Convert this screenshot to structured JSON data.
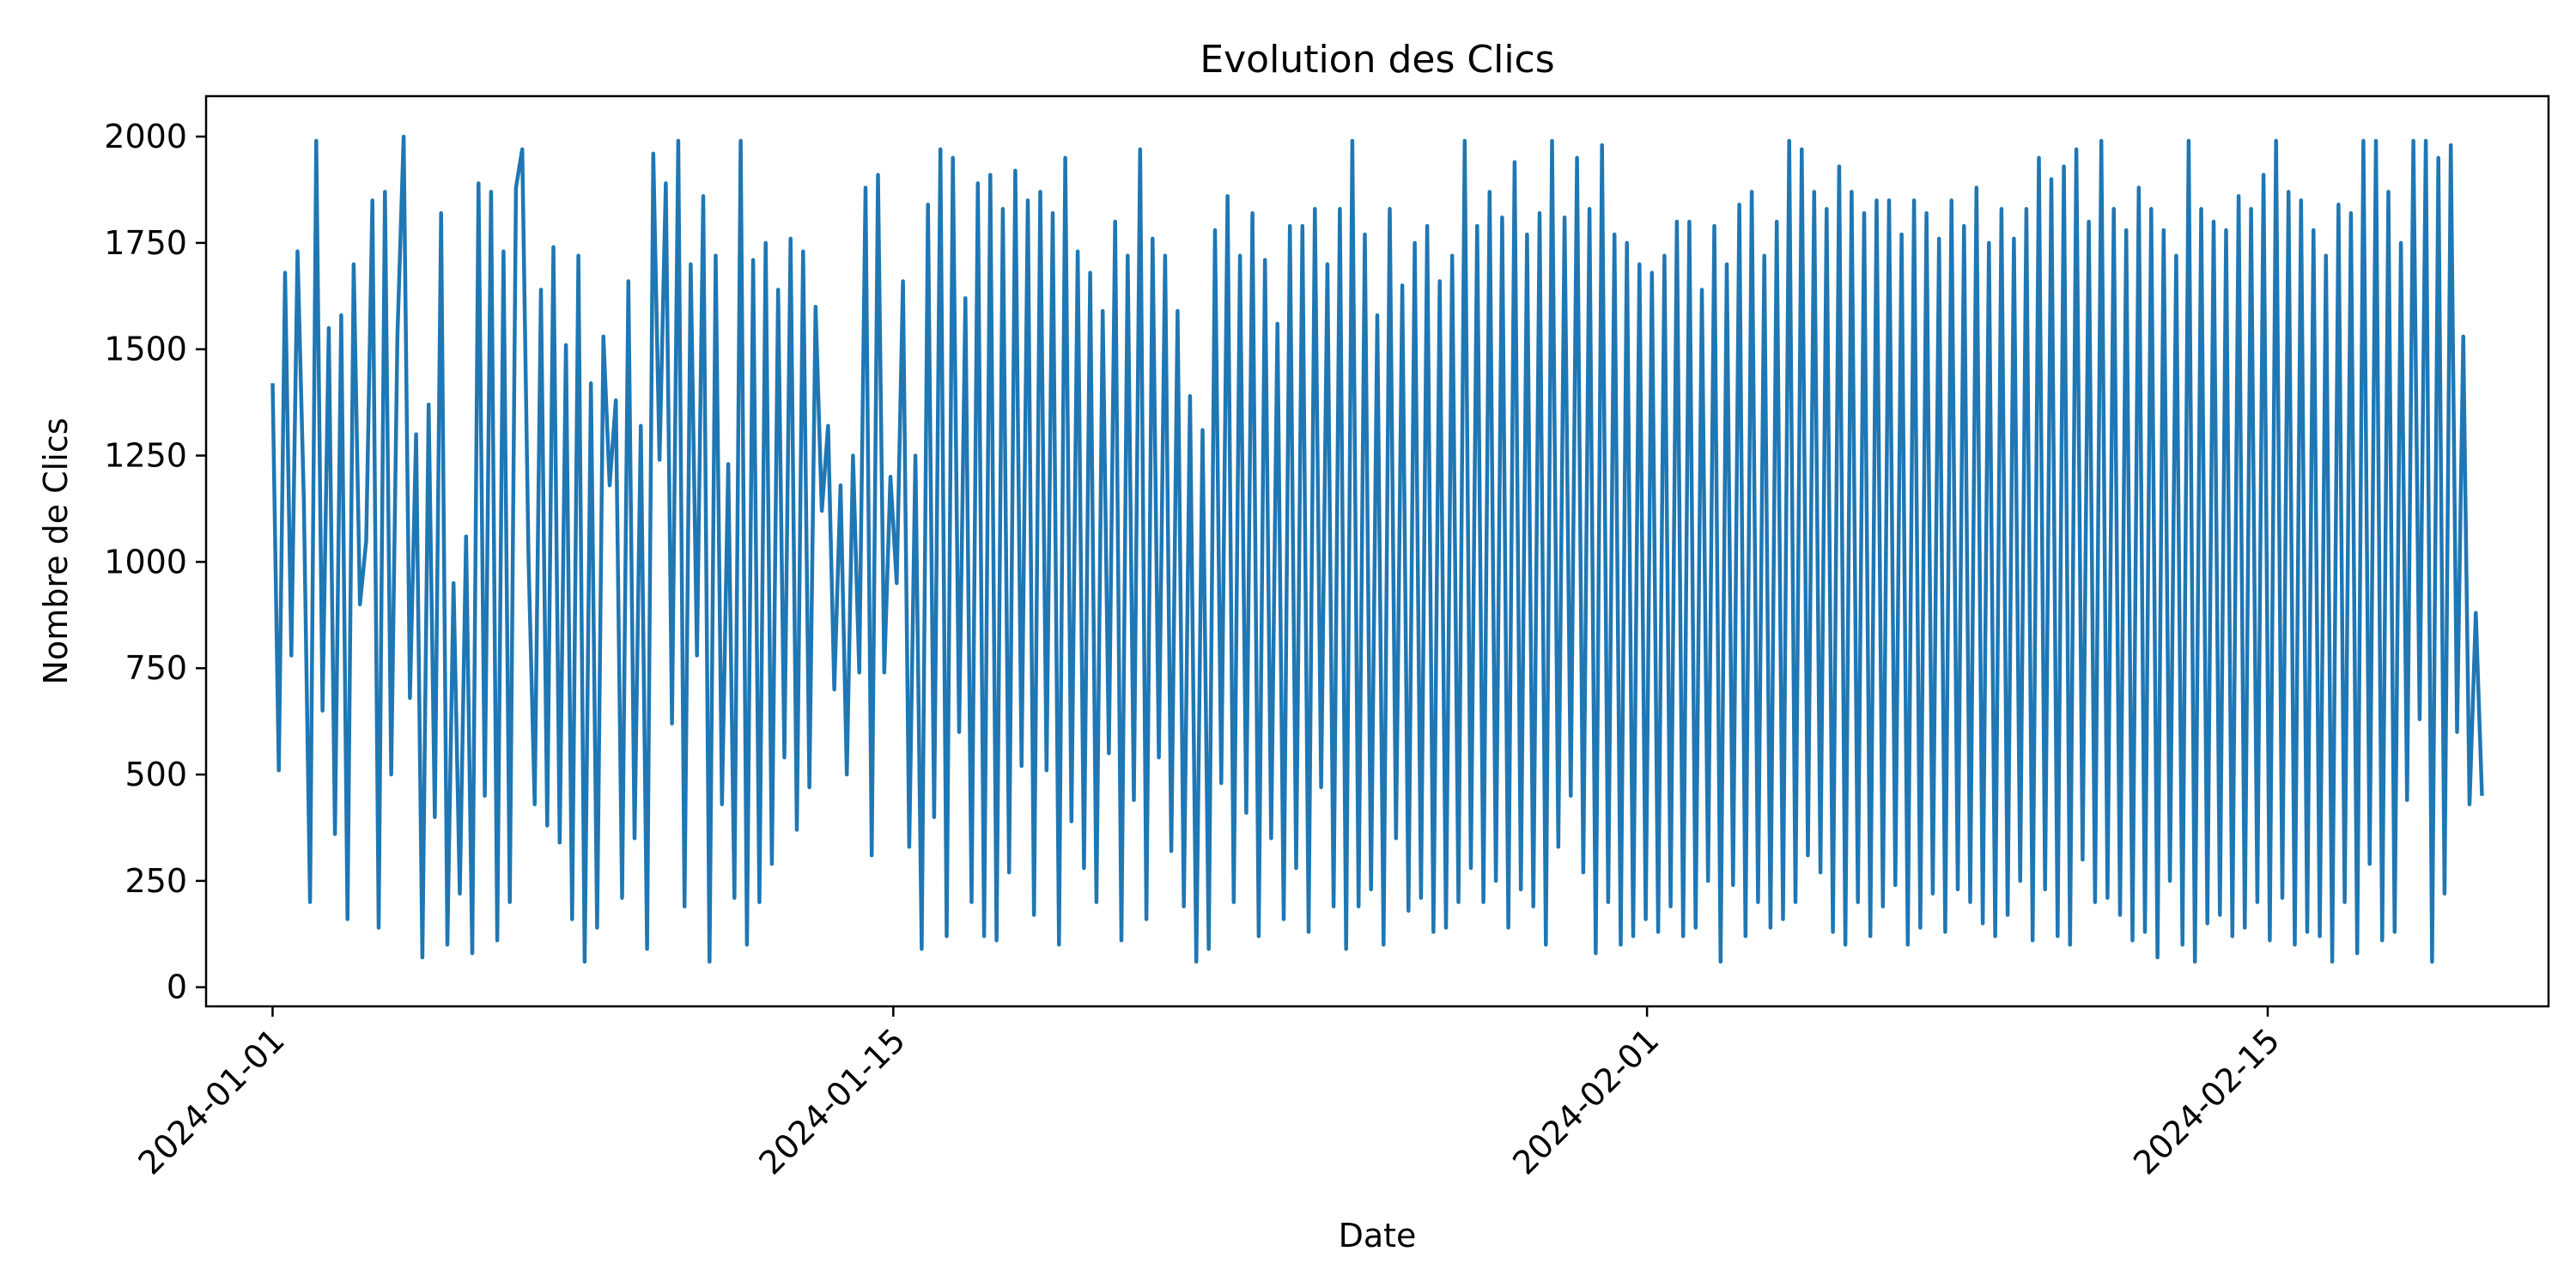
{
  "chart_data": {
    "type": "line",
    "title": "Evolution des Clics",
    "xlabel": "Date",
    "ylabel": "Nombre de Clics",
    "x_start": "2024-01-01",
    "x_end": "2024-02-19T20:00",
    "y_ticks": [
      0,
      250,
      500,
      750,
      1000,
      1250,
      1500,
      1750,
      2000
    ],
    "x_ticks": [
      "2024-01-01",
      "2024-01-15",
      "2024-02-01",
      "2024-02-15"
    ],
    "xlim": [
      "2023-12-30T12:00",
      "2024-02-21T08:00"
    ],
    "ylim": [
      -45,
      2095
    ],
    "grid": false,
    "legend": "none",
    "series": [
      {
        "color": "#1f77b4",
        "values": [
          1420,
          510,
          1680,
          780,
          1730,
          1150,
          200,
          1990,
          650,
          1550,
          360,
          1580,
          160,
          1700,
          900,
          1050,
          1850,
          140,
          1870,
          500,
          1530,
          2000,
          680,
          1300,
          70,
          1370,
          400,
          1820,
          100,
          950,
          220,
          1060,
          80,
          1890,
          450,
          1870,
          110,
          1730,
          200,
          1880,
          1970,
          1010,
          430,
          1640,
          380,
          1740,
          340,
          1510,
          160,
          1720,
          60,
          1420,
          140,
          1530,
          1180,
          1380,
          210,
          1660,
          350,
          1320,
          90,
          1960,
          1240,
          1890,
          620,
          1990,
          190,
          1700,
          780,
          1860,
          60,
          1720,
          430,
          1230,
          210,
          1990,
          100,
          1710,
          200,
          1750,
          290,
          1640,
          540,
          1760,
          370,
          1730,
          470,
          1600,
          1120,
          1320,
          700,
          1180,
          500,
          1250,
          740,
          1880,
          310,
          1910,
          740,
          1200,
          950,
          1660,
          330,
          1250,
          90,
          1840,
          400,
          1970,
          120,
          1950,
          600,
          1620,
          200,
          1890,
          120,
          1910,
          110,
          1830,
          270,
          1920,
          520,
          1850,
          170,
          1870,
          510,
          1820,
          100,
          1950,
          390,
          1730,
          280,
          1680,
          200,
          1590,
          550,
          1800,
          110,
          1720,
          440,
          1970,
          160,
          1760,
          540,
          1720,
          320,
          1590,
          190,
          1390,
          60,
          1310,
          90,
          1780,
          480,
          1860,
          200,
          1720,
          410,
          1820,
          120,
          1710,
          350,
          1560,
          160,
          1790,
          280,
          1790,
          130,
          1830,
          470,
          1700,
          190,
          1830,
          90,
          1990,
          190,
          1770,
          230,
          1580,
          100,
          1830,
          350,
          1650,
          180,
          1750,
          210,
          1790,
          130,
          1660,
          140,
          1720,
          200,
          1990,
          280,
          1790,
          200,
          1870,
          250,
          1810,
          140,
          1940,
          230,
          1770,
          190,
          1820,
          100,
          1990,
          330,
          1810,
          450,
          1950,
          270,
          1830,
          80,
          1980,
          200,
          1770,
          100,
          1750,
          120,
          1700,
          160,
          1680,
          130,
          1720,
          190,
          1800,
          120,
          1800,
          140,
          1640,
          250,
          1790,
          60,
          1700,
          240,
          1840,
          120,
          1870,
          200,
          1720,
          140,
          1800,
          160,
          1990,
          200,
          1970,
          310,
          1870,
          270,
          1830,
          130,
          1930,
          100,
          1870,
          200,
          1820,
          120,
          1850,
          190,
          1850,
          240,
          1770,
          100,
          1850,
          140,
          1820,
          220,
          1760,
          130,
          1850,
          230,
          1790,
          200,
          1880,
          150,
          1750,
          120,
          1830,
          170,
          1760,
          250,
          1830,
          110,
          1950,
          230,
          1900,
          120,
          1930,
          100,
          1970,
          300,
          1800,
          200,
          1990,
          210,
          1830,
          170,
          1780,
          110,
          1880,
          130,
          1830,
          70,
          1780,
          250,
          1720,
          100,
          1990,
          60,
          1830,
          150,
          1800,
          170,
          1780,
          120,
          1860,
          140,
          1830,
          200,
          1910,
          110,
          1990,
          210,
          1870,
          100,
          1850,
          130,
          1780,
          120,
          1720,
          60,
          1840,
          200,
          1820,
          80,
          1990,
          290,
          1990,
          110,
          1870,
          130,
          1750,
          440,
          1990,
          630,
          1990,
          60,
          1950,
          220,
          1980,
          600,
          1530,
          430,
          880,
          450
        ]
      }
    ]
  }
}
